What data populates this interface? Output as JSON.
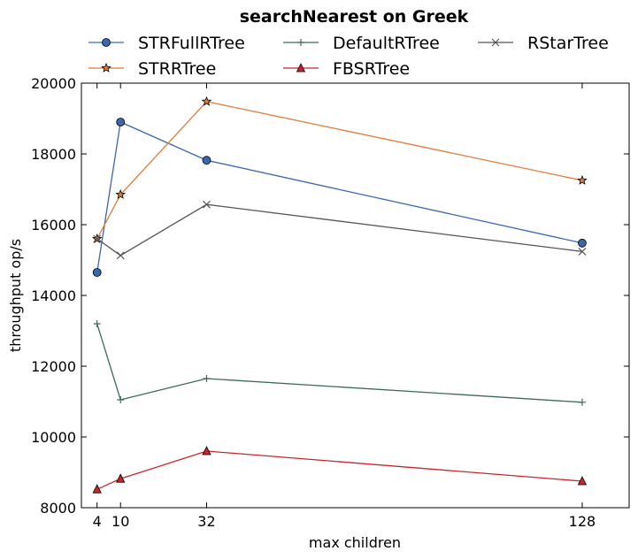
{
  "chart_data": {
    "type": "line",
    "title": "searchNearest on Greek",
    "xlabel": "max children",
    "ylabel": "throughput op/s",
    "x": [
      4,
      10,
      32,
      128
    ],
    "xticks": [
      4,
      10,
      32,
      128
    ],
    "xlim": [
      0,
      140
    ],
    "ylim": [
      8000,
      20000
    ],
    "yticks": [
      8000,
      10000,
      12000,
      14000,
      16000,
      18000,
      20000
    ],
    "grid": false,
    "legend_position": "top",
    "series": [
      {
        "name": "STRFullRTree",
        "values": [
          14650,
          18900,
          17820,
          15480
        ],
        "color": "#3a67ae",
        "marker": "circle"
      },
      {
        "name": "STRRTree",
        "values": [
          15600,
          16850,
          19480,
          17250
        ],
        "color": "#e07b39",
        "marker": "star"
      },
      {
        "name": "DefaultRTree",
        "values": [
          13200,
          11050,
          11650,
          10980
        ],
        "color": "#3e6b57",
        "marker": "plus"
      },
      {
        "name": "FBSRTree",
        "values": [
          8520,
          8820,
          9600,
          8750
        ],
        "color": "#c8262e",
        "marker": "triangle"
      },
      {
        "name": "RStarTree",
        "values": [
          15600,
          15130,
          16570,
          15240
        ],
        "color": "#555555",
        "marker": "x"
      }
    ]
  }
}
